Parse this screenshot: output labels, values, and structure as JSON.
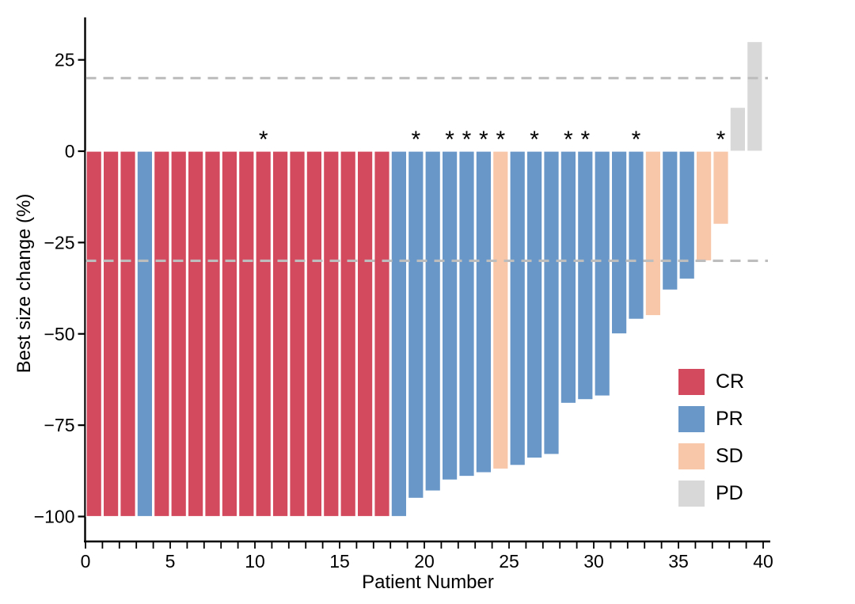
{
  "figure": {
    "x_axis_title": "Patient Number",
    "y_axis_title": "Best size change (%)"
  },
  "chart_data": {
    "type": "bar",
    "subtype": "waterfall",
    "title": "",
    "xlabel": "Patient Number",
    "ylabel": "Best size change (%)",
    "xlim": [
      0,
      40
    ],
    "ylim": [
      -100,
      35
    ],
    "x_tick_labels": [
      "0",
      "5",
      "10",
      "15",
      "20",
      "25",
      "30",
      "35",
      "40"
    ],
    "x_tick_values": [
      0,
      5,
      10,
      15,
      20,
      25,
      30,
      35,
      40
    ],
    "x_minor_tick_step": 1,
    "y_tick_values": [
      25,
      0,
      -25,
      -50,
      -75,
      -100
    ],
    "y_tick_labels": [
      "25",
      "0",
      "−25",
      "−50",
      "−75",
      "−100"
    ],
    "grid": false,
    "reference_lines": [
      {
        "y": 20,
        "style": "dashed",
        "color": "#bdbdbd"
      },
      {
        "y": -30,
        "style": "dashed",
        "color": "#bdbdbd"
      }
    ],
    "legend_position": "inside-bottom-right",
    "legend": [
      {
        "label": "CR",
        "color": "#d34a5e"
      },
      {
        "label": "PR",
        "color": "#6997c8"
      },
      {
        "label": "SD",
        "color": "#f8c6a8"
      },
      {
        "label": "PD",
        "color": "#d8d8d8"
      }
    ],
    "star_symbol": "*",
    "patients": [
      {
        "patient": 1,
        "value": -100,
        "response": "CR",
        "star": false
      },
      {
        "patient": 2,
        "value": -100,
        "response": "CR",
        "star": false
      },
      {
        "patient": 3,
        "value": -100,
        "response": "CR",
        "star": false
      },
      {
        "patient": 4,
        "value": -100,
        "response": "PR",
        "star": false
      },
      {
        "patient": 5,
        "value": -100,
        "response": "CR",
        "star": false
      },
      {
        "patient": 6,
        "value": -100,
        "response": "CR",
        "star": false
      },
      {
        "patient": 7,
        "value": -100,
        "response": "CR",
        "star": false
      },
      {
        "patient": 8,
        "value": -100,
        "response": "CR",
        "star": false
      },
      {
        "patient": 9,
        "value": -100,
        "response": "CR",
        "star": false
      },
      {
        "patient": 10,
        "value": -100,
        "response": "CR",
        "star": false
      },
      {
        "patient": 11,
        "value": -100,
        "response": "CR",
        "star": true
      },
      {
        "patient": 12,
        "value": -100,
        "response": "CR",
        "star": false
      },
      {
        "patient": 13,
        "value": -100,
        "response": "CR",
        "star": false
      },
      {
        "patient": 14,
        "value": -100,
        "response": "CR",
        "star": false
      },
      {
        "patient": 15,
        "value": -100,
        "response": "CR",
        "star": false
      },
      {
        "patient": 16,
        "value": -100,
        "response": "CR",
        "star": false
      },
      {
        "patient": 17,
        "value": -100,
        "response": "CR",
        "star": false
      },
      {
        "patient": 18,
        "value": -100,
        "response": "CR",
        "star": false
      },
      {
        "patient": 19,
        "value": -100,
        "response": "PR",
        "star": false
      },
      {
        "patient": 20,
        "value": -95,
        "response": "PR",
        "star": true
      },
      {
        "patient": 21,
        "value": -93,
        "response": "PR",
        "star": false
      },
      {
        "patient": 22,
        "value": -90,
        "response": "PR",
        "star": true
      },
      {
        "patient": 23,
        "value": -89,
        "response": "PR",
        "star": true
      },
      {
        "patient": 24,
        "value": -88,
        "response": "PR",
        "star": true
      },
      {
        "patient": 25,
        "value": -87,
        "response": "SD",
        "star": true
      },
      {
        "patient": 26,
        "value": -86,
        "response": "PR",
        "star": false
      },
      {
        "patient": 27,
        "value": -84,
        "response": "PR",
        "star": true
      },
      {
        "patient": 28,
        "value": -83,
        "response": "PR",
        "star": false
      },
      {
        "patient": 29,
        "value": -69,
        "response": "PR",
        "star": true
      },
      {
        "patient": 30,
        "value": -68,
        "response": "PR",
        "star": true
      },
      {
        "patient": 31,
        "value": -67,
        "response": "PR",
        "star": false
      },
      {
        "patient": 32,
        "value": -50,
        "response": "PR",
        "star": false
      },
      {
        "patient": 33,
        "value": -46,
        "response": "PR",
        "star": true
      },
      {
        "patient": 34,
        "value": -45,
        "response": "SD",
        "star": false
      },
      {
        "patient": 35,
        "value": -38,
        "response": "PR",
        "star": false
      },
      {
        "patient": 36,
        "value": -35,
        "response": "PR",
        "star": false
      },
      {
        "patient": 37,
        "value": -30,
        "response": "SD",
        "star": false
      },
      {
        "patient": 38,
        "value": -20,
        "response": "SD",
        "star": true
      },
      {
        "patient": 39,
        "value": 12,
        "response": "PD",
        "star": false
      },
      {
        "patient": 40,
        "value": 30,
        "response": "PD",
        "star": false
      }
    ]
  },
  "colors": {
    "axis": "#000000",
    "text": "#000000",
    "bar_edge": "#ffffff",
    "dashed_line": "#bdbdbd",
    "background": "#ffffff"
  }
}
